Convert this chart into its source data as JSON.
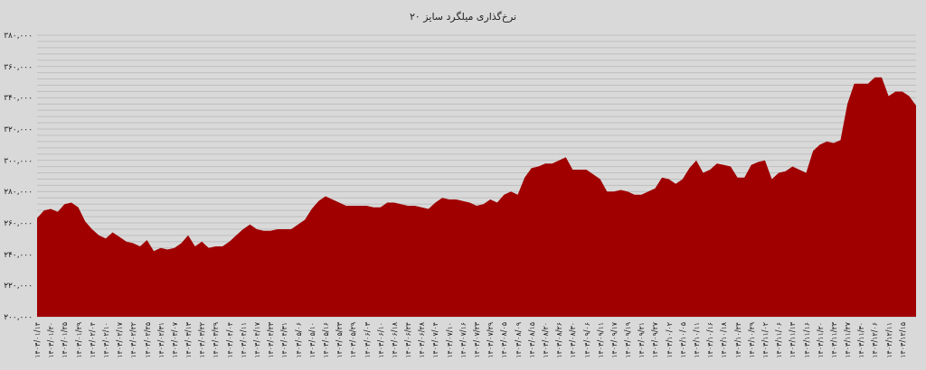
{
  "chart_data": {
    "type": "area",
    "title": "نرخ‌گذاری میلگرد سایز ۲۰",
    "categories": [
      "۱۴۰۳/۰۱/۱۴",
      null,
      "۱۴۰۳/۰۱/۲۰",
      null,
      "۱۴۰۳/۰۱/۲۵",
      null,
      "۱۴۰۳/۰۱/۲۹",
      null,
      "۱۴۰۳/۰۲/۰۴",
      null,
      "۱۴۰۳/۰۲/۱۰",
      null,
      "۱۴۰۳/۰۲/۱۷",
      null,
      "۱۴۰۳/۰۲/۲۲",
      null,
      "۱۴۰۳/۰۲/۲۵",
      null,
      "۱۴۰۳/۰۲/۳۱",
      null,
      "۱۴۰۳/۰۳/۰۷",
      null,
      "۱۴۰۳/۰۳/۱۳",
      null,
      "۱۴۰۳/۰۳/۲۲",
      null,
      "۱۴۰۳/۰۳/۲۹",
      null,
      "۱۴۰۳/۰۴/۰۴",
      null,
      "۱۴۰۳/۰۴/۱۱",
      null,
      "۱۴۰۳/۰۴/۱۷",
      null,
      "۱۴۰۳/۰۴/۲۳",
      null,
      "۱۴۰۳/۰۴/۳۱",
      null,
      "۱۴۰۳/۰۵/۰۶",
      null,
      "۱۴۰۳/۰۵/۱۰",
      null,
      "۱۴۰۳/۰۵/۱۶",
      null,
      "۱۴۰۳/۰۵/۲۳",
      null,
      "۱۴۰۳/۰۵/۲۹",
      null,
      "۱۴۰۳/۰۶/۰۳",
      null,
      "۱۴۰۳/۰۶/۱۰",
      null,
      "۱۴۰۳/۰۶/۱۸",
      null,
      "۱۴۰۳/۰۶/۲۴",
      null,
      "۱۴۰۳/۰۶/۲۸",
      null,
      "۱۴۰۳/۰۷/۰۴",
      null,
      "۱۴۰۳/۰۷/۱۰",
      null,
      "۱۴۰۳/۰۷/۱۶",
      null,
      "۱۴۰۳/۰۷/۲۳",
      null,
      "۱۴۰۳/۰۷/۲۹",
      null,
      "۱۴۰۳/۰۸/۰۵",
      null,
      "۱۴۰۳/۰۸/۰۹",
      null,
      "۱۴۰۳/۰۸/۱۵",
      null,
      "۱۴۰۳/۰۸/۲۰",
      null,
      "۱۴۰۳/۰۸/۲۶",
      null,
      "۱۴۰۳/۰۸/۳۰",
      null,
      "۱۴۰۳/۰۹/۰۶",
      null,
      "۱۴۰۳/۰۹/۱۱",
      null,
      "۱۴۰۳/۰۹/۱۷",
      null,
      "۱۴۰۳/۰۹/۱۹",
      null,
      "۱۴۰۳/۰۹/۲۱",
      null,
      "۱۴۰۳/۰۹/۲۷",
      null,
      "۱۴۰۳/۱۰/۰۲",
      null,
      "۱۴۰۳/۱۰/۰۵",
      null,
      "۱۴۰۳/۱۰/۱۱",
      null,
      "۱۴۰۳/۱۰/۱۶",
      null,
      "۱۴۰۳/۱۰/۱۸",
      null,
      "۱۴۰۳/۱۰/۲۴",
      null,
      "۱۴۰۳/۱۰/۲۹",
      null,
      "۱۴۰۳/۱۱/۰۲",
      null,
      "۱۴۰۳/۱۱/۰۶",
      null,
      "۱۴۰۳/۱۱/۱۳",
      null,
      "۱۴۰۳/۱۱/۱۶",
      null,
      "۱۴۰۳/۱۱/۲۰",
      null,
      "۱۴۰۳/۱۱/۲۳",
      null,
      "۱۴۰۳/۱۱/۲۷",
      null,
      "۱۴۰۳/۱۱/۳۰",
      null,
      "۱۴۰۳/۱۲/۰۶",
      null,
      "۱۴۰۳/۱۲/۱۱",
      null,
      "۱۴۰۳/۱۲/۱۵",
      null,
      null
    ],
    "values": [
      263000,
      268000,
      269000,
      267000,
      272000,
      273000,
      270000,
      261000,
      256000,
      252000,
      250000,
      254000,
      251000,
      248000,
      247000,
      245000,
      249000,
      242000,
      244000,
      243000,
      244000,
      247000,
      252000,
      245000,
      248000,
      244000,
      245000,
      245000,
      248000,
      252000,
      256000,
      259000,
      256000,
      255000,
      255000,
      256000,
      256000,
      256000,
      259000,
      262000,
      269000,
      274000,
      277000,
      275000,
      273000,
      271000,
      271000,
      271000,
      271000,
      270000,
      270000,
      273000,
      273000,
      272000,
      271000,
      271000,
      270000,
      269000,
      273000,
      276000,
      275000,
      275000,
      274000,
      273000,
      271000,
      272000,
      275000,
      273000,
      278000,
      280000,
      278000,
      289000,
      295000,
      296000,
      298000,
      298000,
      300000,
      302000,
      294000,
      294000,
      294000,
      291000,
      288000,
      280000,
      280000,
      281000,
      280000,
      278000,
      278000,
      280000,
      282000,
      289000,
      288000,
      285000,
      288000,
      295000,
      300000,
      292000,
      294000,
      298000,
      297000,
      296000,
      289000,
      289000,
      297000,
      299000,
      300000,
      288000,
      292000,
      293000,
      296000,
      294000,
      292000,
      306000,
      310000,
      312000,
      311000,
      313000,
      336000,
      349000,
      349000,
      349000,
      353000,
      353000,
      341000,
      344000,
      344000,
      341000,
      335000
    ],
    "color": "#a00000",
    "ylim": [
      200000,
      380000
    ],
    "yticks": [
      {
        "value": 200000,
        "label": "۲۰۰,۰۰۰"
      },
      {
        "value": 220000,
        "label": "۲۲۰,۰۰۰"
      },
      {
        "value": 240000,
        "label": "۲۴۰,۰۰۰"
      },
      {
        "value": 260000,
        "label": "۲۶۰,۰۰۰"
      },
      {
        "value": 280000,
        "label": "۲۸۰,۰۰۰"
      },
      {
        "value": 300000,
        "label": "۳۰۰,۰۰۰"
      },
      {
        "value": 320000,
        "label": "۳۲۰,۰۰۰"
      },
      {
        "value": 340000,
        "label": "۳۴۰,۰۰۰"
      },
      {
        "value": 360000,
        "label": "۳۶۰,۰۰۰"
      },
      {
        "value": 380000,
        "label": "۳۸۰,۰۰۰"
      }
    ],
    "grid": "y"
  }
}
